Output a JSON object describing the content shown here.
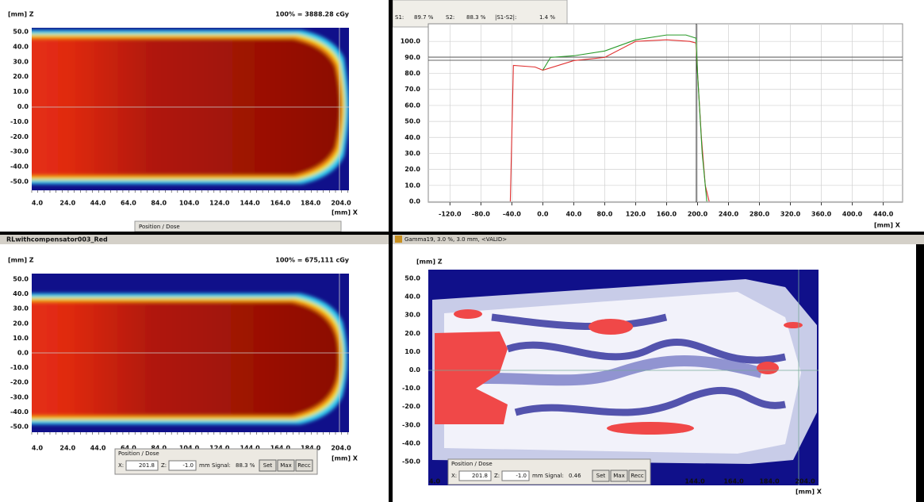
{
  "top_left": {
    "z_unit": "[mm] Z",
    "norm": "100% = 3888.28 cGy",
    "yticks": [
      "50.0",
      "40.0",
      "30.0",
      "20.0",
      "10.0",
      "0.0",
      "-10.0",
      "-20.0",
      "-30.0",
      "-40.0",
      "-50.0"
    ],
    "xticks": [
      "4.0",
      "24.0",
      "44.0",
      "64.0",
      "84.0",
      "104.0",
      "124.0",
      "144.0",
      "164.0",
      "184.0",
      "204.0"
    ],
    "x_unit": "[mm] X",
    "position_bar": "Position / Dose"
  },
  "bottom_left": {
    "title": "RLwithcompensator003_Red",
    "z_unit": "[mm] Z",
    "norm": "100% = 675,111 cGy",
    "yticks": [
      "50.0",
      "40.0",
      "30.0",
      "20.0",
      "10.0",
      "0.0",
      "-10.0",
      "-20.0",
      "-30.0",
      "-40.0",
      "-50.0"
    ],
    "xticks": [
      "4.0",
      "24.0",
      "44.0",
      "64.0",
      "84.0",
      "104.0",
      "124.0",
      "144.0",
      "164.0",
      "184.0",
      "204.0"
    ],
    "x_unit": "[mm] X",
    "position_dose": {
      "title": "Position / Dose",
      "x_label": "X:",
      "x_value": "201.8",
      "z_label": "Z:",
      "z_value": "-1.0",
      "unit": "mm",
      "signal_label": "Signal:",
      "signal_value": "88.3 %",
      "buttons": [
        "Set",
        "Max",
        "Recc"
      ]
    }
  },
  "chart_data": {
    "type": "line",
    "readout_values": [
      "89.7 %",
      "88.3 %"
    ],
    "diff_label": "|S1-S2|:",
    "diff_value": "1.4 %",
    "x_label": "[mm] X",
    "xlim": [
      -148,
      465
    ],
    "ylim": [
      -0.5,
      111
    ],
    "xticks": [
      {
        "value": -120,
        "label": "-120.0"
      },
      {
        "value": -80,
        "label": "-80.0"
      },
      {
        "value": -40,
        "label": "-40.0"
      },
      {
        "value": 0,
        "label": "0.0"
      },
      {
        "value": 40,
        "label": "40.0"
      },
      {
        "value": 80,
        "label": "80.0"
      },
      {
        "value": 120,
        "label": "120.0"
      },
      {
        "value": 160,
        "label": "160.0"
      },
      {
        "value": 200,
        "label": "200.0"
      },
      {
        "value": 240,
        "label": "240.0"
      },
      {
        "value": 280,
        "label": "280.0"
      },
      {
        "value": 320,
        "label": "320.0"
      },
      {
        "value": 360,
        "label": "360.0"
      },
      {
        "value": 400,
        "label": "400.0"
      },
      {
        "value": 440,
        "label": "440.0"
      }
    ],
    "yticks": [
      {
        "value": 0,
        "label": "0.0"
      },
      {
        "value": 10,
        "label": "10.0"
      },
      {
        "value": 20,
        "label": "20.0"
      },
      {
        "value": 30,
        "label": "30.0"
      },
      {
        "value": 40,
        "label": "40.0"
      },
      {
        "value": 50,
        "label": "50.0"
      },
      {
        "value": 60,
        "label": "60.0"
      },
      {
        "value": 70,
        "label": "70.0"
      },
      {
        "value": 80,
        "label": "80.0"
      },
      {
        "value": 90,
        "label": "90.0"
      },
      {
        "value": 100,
        "label": "100.0"
      }
    ],
    "grid": true,
    "series": [
      {
        "name": "S1:",
        "color": "#e03030",
        "x": [
          -42,
          -38,
          -10,
          0,
          40,
          80,
          120,
          160,
          190,
          198,
          200,
          205,
          210,
          215
        ],
        "values": [
          0,
          85,
          84,
          82,
          88,
          90,
          100,
          101,
          100,
          99,
          80,
          40,
          10,
          0
        ]
      },
      {
        "name": "S2:",
        "color": "#2a9a2a",
        "x": [
          0,
          10,
          40,
          80,
          120,
          160,
          185,
          198,
          200,
          206,
          212
        ],
        "values": [
          82,
          90,
          91,
          94,
          101,
          104,
          104,
          102,
          80,
          30,
          0
        ]
      }
    ]
  },
  "gamma": {
    "title": "Gamma19,  3.0 %,  3.0 mm,  <VALID>",
    "z_unit": "[mm] Z",
    "yticks": [
      "50.0",
      "40.0",
      "30.0",
      "20.0",
      "10.0",
      "0.0",
      "-10.0",
      "-20.0",
      "-30.0",
      "-40.0",
      "-50.0"
    ],
    "xticks": [
      "4.0",
      "144.0",
      "164.0",
      "184.0",
      "204.0"
    ],
    "x_unit": "[mm] X",
    "position_dose": {
      "title": "Position / Dose",
      "x_label": "X:",
      "x_value": "201.8",
      "z_label": "Z:",
      "z_value": "-1.0",
      "unit": "mm",
      "signal_label": "Signal:",
      "signal_value": "0.46",
      "buttons": [
        "Set",
        "Max",
        "Recc"
      ]
    }
  }
}
